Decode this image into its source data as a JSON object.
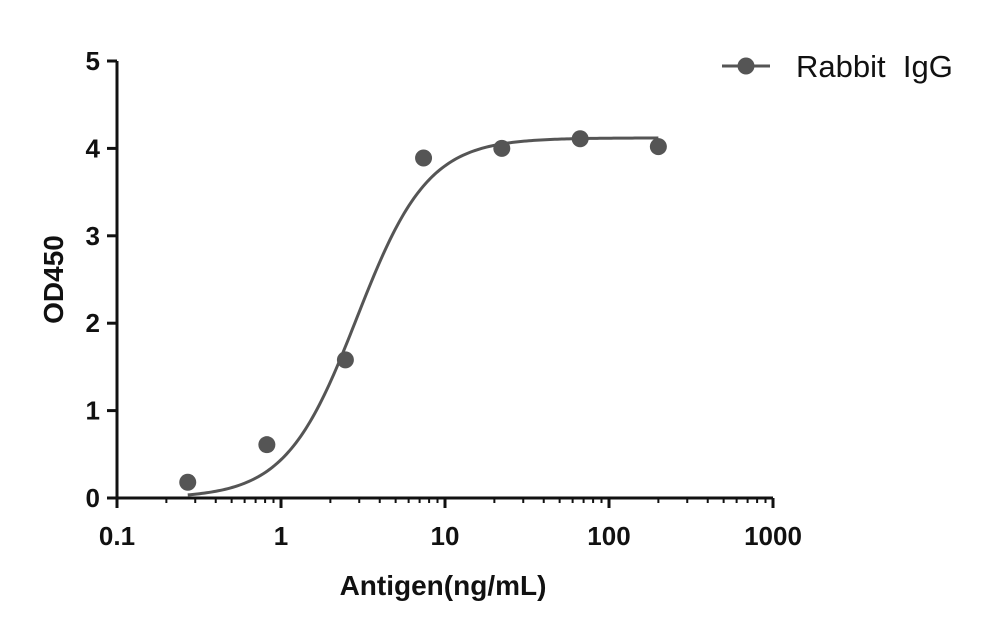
{
  "chart_data": {
    "type": "scatter",
    "xscale": "log",
    "xlim": [
      0.1,
      1000
    ],
    "ylim": [
      0,
      5
    ],
    "xticks": [
      "0.1",
      "1",
      "10",
      "100",
      "1000"
    ],
    "xtick_values": [
      0.1,
      1,
      10,
      100,
      1000
    ],
    "yticks": [
      "0",
      "1",
      "2",
      "3",
      "4",
      "5"
    ],
    "ytick_values": [
      0,
      1,
      2,
      3,
      4,
      5
    ],
    "xlabel": "Antigen(ng/mL)",
    "ylabel": "OD450",
    "legend_position": "top-right",
    "grid": false,
    "series": [
      {
        "name": "Rabbit  IgG",
        "color": "#555555",
        "x": [
          0.27,
          0.82,
          2.47,
          7.4,
          22.2,
          66.7,
          200
        ],
        "y": [
          0.18,
          0.61,
          1.58,
          3.89,
          4.0,
          4.11,
          4.02
        ],
        "fit": {
          "model": "4PL",
          "bottom": 0.0,
          "top": 4.12,
          "ec50": 2.9,
          "hill": 2.0,
          "x_range": [
            0.27,
            200
          ]
        }
      }
    ]
  }
}
